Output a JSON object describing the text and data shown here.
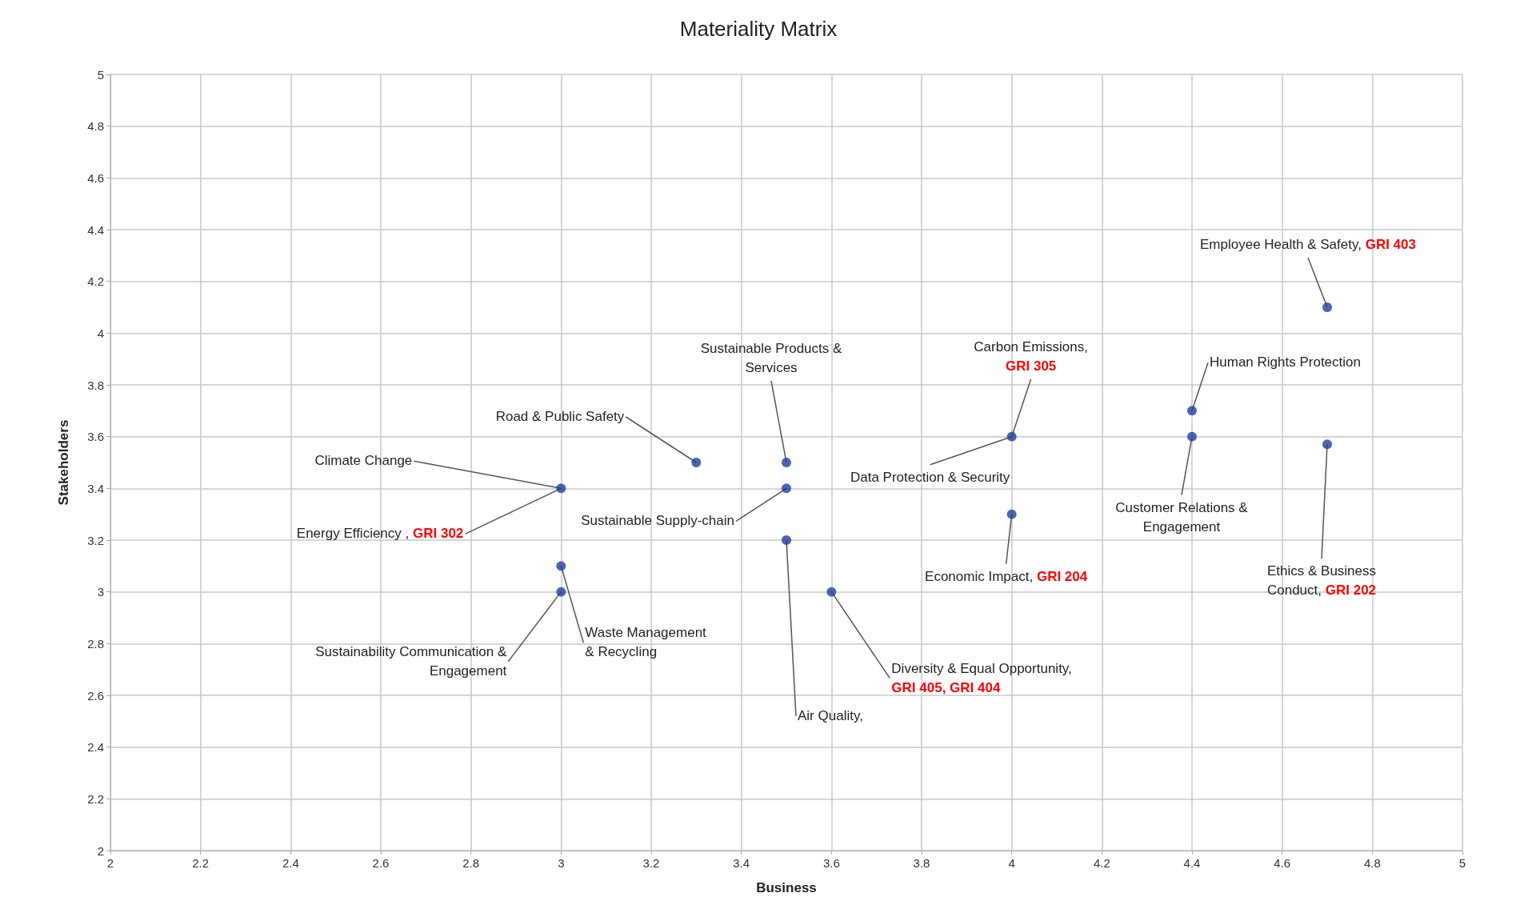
{
  "chart_data": {
    "type": "scatter",
    "title": "Materiality Matrix",
    "xlabel": "Business",
    "ylabel": "Stakeholders",
    "x": [
      4.7,
      4.4,
      4.4,
      4.7,
      4.0,
      4.0,
      3.5,
      3.5,
      3.5,
      3.6,
      3.3,
      3.0,
      3.0,
      3.0
    ],
    "values": [
      4.1,
      3.7,
      3.6,
      3.57,
      3.6,
      3.3,
      3.5,
      3.4,
      3.2,
      3.0,
      3.5,
      3.4,
      3.1,
      3.0
    ],
    "color": "#1f3f9e",
    "marker": "circle",
    "grid": true,
    "xlim": [
      2,
      5
    ],
    "xticks": [
      2,
      2.2,
      2.4,
      2.6,
      2.8,
      3,
      3.2,
      3.4,
      3.6,
      3.8,
      4,
      4.2,
      4.4,
      4.6,
      4.8,
      5
    ],
    "ylim": [
      2,
      5
    ],
    "yticks": [
      2,
      2.2,
      2.4,
      2.6,
      2.8,
      3,
      3.2,
      3.4,
      3.6,
      3.8,
      4,
      4.2,
      4.4,
      4.6,
      4.8,
      5
    ],
    "annotations": [
      {
        "text": "Employee Health & Safety, GRI 403",
        "x": 4.7,
        "y": 4.1
      },
      {
        "text": "Human Rights Protection",
        "x": 4.4,
        "y": 3.7
      },
      {
        "text": "Customer Relations & Engagement",
        "x": 4.4,
        "y": 3.6
      },
      {
        "text": "Ethics & Business Conduct, GRI 202",
        "x": 4.7,
        "y": 3.57
      },
      {
        "text": "Carbon Emissions, GRI 305",
        "x": 4.0,
        "y": 3.6
      },
      {
        "text": "Data Protection & Security",
        "x": 4.0,
        "y": 3.6
      },
      {
        "text": "Economic Impact, GRI 204",
        "x": 4.0,
        "y": 3.3
      },
      {
        "text": "Sustainable Products & Services",
        "x": 3.5,
        "y": 3.5
      },
      {
        "text": "Sustainable Supply-chain",
        "x": 3.5,
        "y": 3.4
      },
      {
        "text": "Air Quality,",
        "x": 3.5,
        "y": 3.2
      },
      {
        "text": "Diversity & Equal Opportunity, GRI 405, GRI 404",
        "x": 3.6,
        "y": 3.0
      },
      {
        "text": "Road & Public Safety",
        "x": 3.3,
        "y": 3.5
      },
      {
        "text": "Climate Change",
        "x": 3.0,
        "y": 3.4
      },
      {
        "text": "Energy Efficiency , GRI 302",
        "x": 3.0,
        "y": 3.4
      },
      {
        "text": "Waste Management & Recycling",
        "x": 3.0,
        "y": 3.1
      },
      {
        "text": "Sustainability Communication & Engagement",
        "x": 3.0,
        "y": 3.0
      }
    ]
  }
}
